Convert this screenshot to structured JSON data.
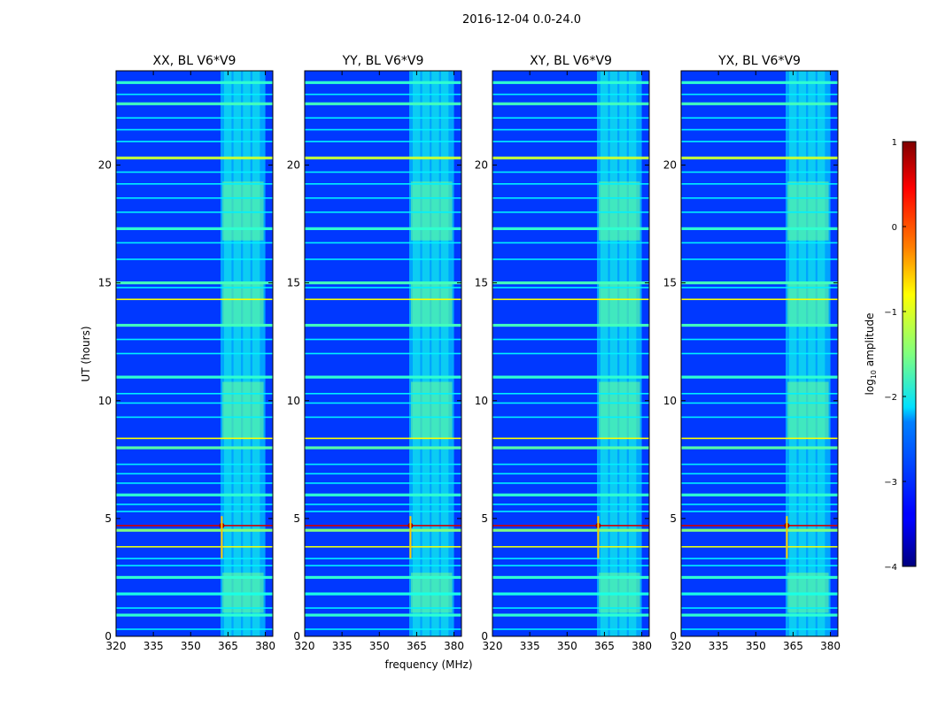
{
  "chart_data": {
    "type": "heatmap",
    "suptitle": "2016-12-04 0.0-24.0",
    "xlabel": "frequency (MHz)",
    "ylabel": "UT (hours)",
    "xlim": [
      320,
      383
    ],
    "ylim": [
      0,
      24
    ],
    "xticks": [
      320,
      335,
      350,
      365,
      380
    ],
    "yticks": [
      0,
      5,
      10,
      15,
      20
    ],
    "panels": [
      {
        "title": "XX, BL V6*V9"
      },
      {
        "title": "YY, BL V6*V9"
      },
      {
        "title": "XY, BL V6*V9"
      },
      {
        "title": "YX, BL V6*V9"
      }
    ],
    "colorbar": {
      "label": "log",
      "label_sub": "10",
      "label_suffix": " amplitude",
      "range": [
        -4,
        1
      ],
      "ticks": [
        1,
        0,
        -1,
        -2,
        -3,
        -4
      ],
      "tick_labels": [
        "1",
        "0",
        "−1",
        "−2",
        "−3",
        "−4"
      ],
      "colormap": "jet"
    },
    "features": {
      "background_level": -3.1,
      "rfi_band_mhz": [
        362,
        380
      ],
      "strong_rows_ut": [
        0.9,
        1.8,
        2.5,
        3.8,
        4.5,
        4.7,
        6.0,
        8.0,
        8.4,
        11.0,
        13.2,
        14.3,
        15.0,
        17.3,
        20.3,
        22.6,
        23.5
      ],
      "strong_rows_level": [
        -1.9,
        -2.0,
        -1.9,
        -1.0,
        -1.5,
        0.6,
        -1.9,
        -1.7,
        -0.9,
        -1.9,
        -1.8,
        -0.9,
        -1.8,
        -1.9,
        -1.2,
        -1.8,
        -1.9
      ],
      "peak_point": {
        "freq_mhz": 362.5,
        "ut": 4.7,
        "level": 0.9
      }
    }
  }
}
